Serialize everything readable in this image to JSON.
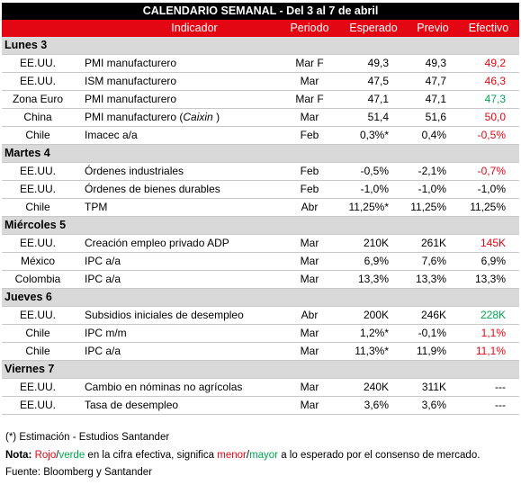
{
  "title": "CALENDARIO SEMANAL - Del 3 al 7 de abril",
  "header": [
    "Indicador",
    "Periodo",
    "Esperado",
    "Previo",
    "Efectivo"
  ],
  "days": [
    {
      "label": "Lunes 3",
      "rows": [
        {
          "country": "EE.UU.",
          "indicator": "PMI manufacturero",
          "period": "Mar F",
          "expected": "49,3",
          "previous": "49,3",
          "actual": "49,2",
          "color": "#e30613"
        },
        {
          "country": "EE.UU.",
          "indicator": "ISM manufacturero",
          "period": "Mar",
          "expected": "47,5",
          "previous": "47,7",
          "actual": "46,3",
          "color": "#e30613"
        },
        {
          "country": "Zona Euro",
          "indicator": "PMI manufacturero",
          "period": "Mar F",
          "expected": "47,1",
          "previous": "47,1",
          "actual": "47,3",
          "color": "#00a651"
        },
        {
          "country": "China",
          "indicator": "PMI manufacturero (",
          "indicator_italic": "Caixin",
          "indicator_suffix": " )",
          "period": "Mar",
          "expected": "51,4",
          "previous": "51,6",
          "actual": "50,0",
          "color": "#e30613"
        },
        {
          "country": "Chile",
          "indicator": "Imacec a/a",
          "period": "Feb",
          "expected": "0,3%*",
          "previous": "0,4%",
          "actual": "-0,5%",
          "color": "#e30613"
        }
      ]
    },
    {
      "label": "Martes 4",
      "rows": [
        {
          "country": "EE.UU.",
          "indicator": "Órdenes industriales",
          "period": "Feb",
          "expected": "-0,5%",
          "previous": "-2,1%",
          "actual": "-0,7%",
          "color": "#e30613"
        },
        {
          "country": "EE.UU.",
          "indicator": "Órdenes de bienes durables",
          "period": "Feb",
          "expected": "-1,0%",
          "previous": "-1,0%",
          "actual": "-1,0%"
        },
        {
          "country": "Chile",
          "indicator": "TPM",
          "period": "Abr",
          "expected": "11,25%*",
          "previous": "11,25%",
          "actual": "11,25%"
        }
      ]
    },
    {
      "label": "Miércoles 5",
      "rows": [
        {
          "country": "EE.UU.",
          "indicator": "Creación empleo privado ADP",
          "period": "Mar",
          "expected": "210K",
          "previous": "261K",
          "actual": "145K",
          "color": "#e30613"
        },
        {
          "country": "México",
          "indicator": "IPC a/a",
          "period": "Mar",
          "expected": "6,9%",
          "previous": "7,6%",
          "actual": "6,9%"
        },
        {
          "country": "Colombia",
          "indicator": "IPC a/a",
          "period": "Mar",
          "expected": "13,3%",
          "previous": "13,3%",
          "actual": "13,3%"
        }
      ]
    },
    {
      "label": "Jueves 6",
      "rows": [
        {
          "country": "EE.UU.",
          "indicator": "Subsidios iniciales de desempleo",
          "period": "Abr",
          "expected": "200K",
          "previous": "246K",
          "actual": "228K",
          "color": "#00a651"
        },
        {
          "country": "Chile",
          "indicator": "IPC m/m",
          "period": "Mar",
          "expected": "1,2%*",
          "previous": "-0,1%",
          "actual": "1,1%",
          "color": "#e30613"
        },
        {
          "country": "Chile",
          "indicator": "IPC a/a",
          "period": "Mar",
          "expected": "11,3%*",
          "previous": "11,9%",
          "actual": "11,1%",
          "color": "#e30613"
        }
      ]
    },
    {
      "label": "Viernes 7",
      "rows": [
        {
          "country": "EE.UU.",
          "indicator": "Cambio en nóminas no agrícolas",
          "period": "Mar",
          "expected": "240K",
          "previous": "311K",
          "actual": "---"
        },
        {
          "country": "EE.UU.",
          "indicator": "Tasa de desempleo",
          "period": "Mar",
          "expected": "3,6%",
          "previous": "3,6%",
          "actual": "---"
        }
      ]
    }
  ],
  "footnote": "(*) Estimación - Estudios Santander",
  "note": {
    "label": "Nota:",
    "parts": [
      {
        "text": "Rojo",
        "color": "#e30613"
      },
      {
        "text": "/"
      },
      {
        "text": "verde",
        "color": "#00a651"
      },
      {
        "text": " en la cifra efectiva, significa "
      },
      {
        "text": "menor",
        "color": "#e30613"
      },
      {
        "text": "/"
      },
      {
        "text": "mayor",
        "color": "#00a651"
      },
      {
        "text": " a lo esperado por el consenso de mercado."
      }
    ]
  },
  "source": "Fuente: Bloomberg y Santander"
}
